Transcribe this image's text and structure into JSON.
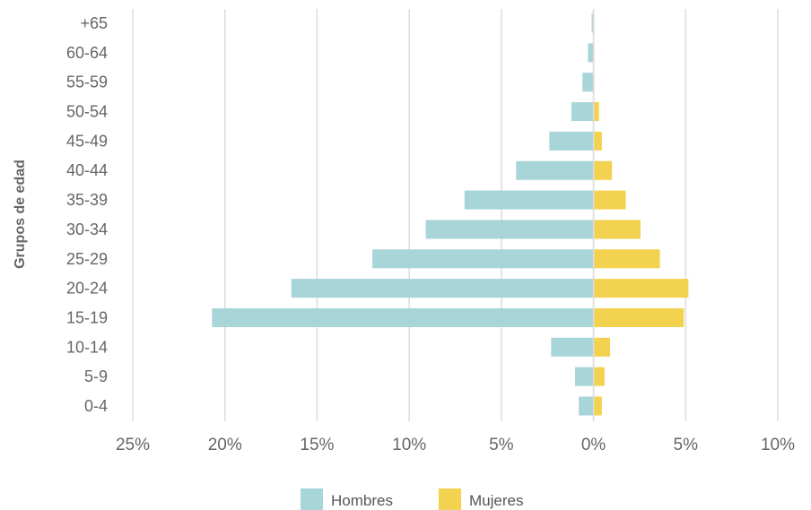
{
  "chart_data": {
    "type": "bar",
    "orientation": "horizontal",
    "ylabel": "Grupos de edad",
    "categories": [
      "+65",
      "60-64",
      "55-59",
      "50-54",
      "45-49",
      "40-44",
      "35-39",
      "30-34",
      "25-29",
      "20-24",
      "15-19",
      "10-14",
      "5-9",
      "0-4"
    ],
    "x_ticks": [
      -25,
      -20,
      -15,
      -10,
      -5,
      0,
      5,
      10
    ],
    "x_tick_labels": [
      "25%",
      "20%",
      "15%",
      "10%",
      "5%",
      "0%",
      "5%",
      "10%"
    ],
    "xlim": [
      -25,
      10
    ],
    "grid": true,
    "legend_position": "bottom",
    "series": [
      {
        "name": "Hombres",
        "color": "#a8d5d8",
        "values": [
          -0.1,
          -0.3,
          -0.6,
          -1.2,
          -2.4,
          -4.2,
          -7.0,
          -9.1,
          -12.0,
          -16.4,
          -20.7,
          -2.3,
          -1.0,
          -0.8
        ]
      },
      {
        "name": "Mujeres",
        "color": "#f2d24f",
        "values": [
          0.05,
          0.05,
          0.05,
          0.3,
          0.45,
          1.0,
          1.75,
          2.55,
          3.6,
          5.15,
          4.9,
          0.9,
          0.6,
          0.45
        ]
      }
    ]
  }
}
